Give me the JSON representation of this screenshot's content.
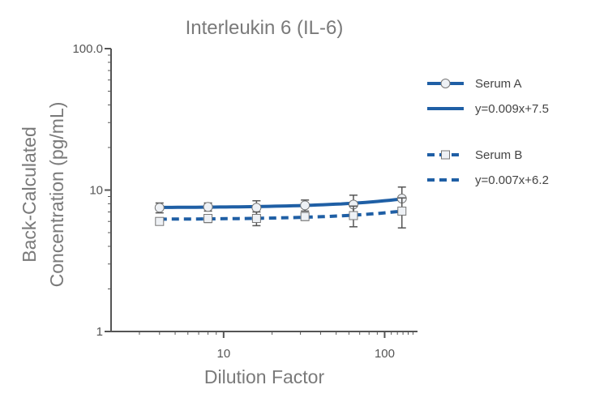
{
  "chart_data": {
    "type": "line",
    "title": "Interleukin 6 (IL-6)",
    "xlabel": "Dilution Factor",
    "ylabel_line1": "Back-Calculated",
    "ylabel_line2": "Concentration (pg/mL)",
    "x_scale": "log",
    "y_scale": "log",
    "xlim": [
      2,
      160
    ],
    "ylim": [
      1,
      100
    ],
    "x_ticks": [
      10,
      100
    ],
    "x_tick_labels": [
      "10",
      "100"
    ],
    "y_ticks": [
      1,
      10,
      100
    ],
    "y_tick_labels": [
      "1",
      "10",
      "100.0"
    ],
    "grid": false,
    "legend_position": "right",
    "series": [
      {
        "name": "Serum A",
        "marker": "circle",
        "color": "#1f5fa5",
        "x": [
          4,
          8,
          16,
          32,
          64,
          128
        ],
        "y": [
          7.5,
          7.6,
          7.5,
          7.8,
          7.9,
          8.7
        ],
        "err": [
          0.6,
          0.5,
          0.9,
          0.7,
          1.3,
          1.8
        ]
      },
      {
        "name": "Serum B",
        "marker": "square",
        "color": "#1f5fa5",
        "x": [
          4,
          8,
          16,
          32,
          64,
          128
        ],
        "y": [
          6.0,
          6.3,
          6.3,
          6.5,
          6.6,
          7.1
        ],
        "err": [
          0.3,
          0.4,
          0.7,
          0.4,
          1.1,
          1.7
        ]
      }
    ],
    "fits": [
      {
        "name": "y=0.009x+7.5",
        "slope": 0.009,
        "intercept": 7.5,
        "style": "solid",
        "x_range": [
          4,
          128
        ]
      },
      {
        "name": "y=0.007x+6.2",
        "slope": 0.007,
        "intercept": 6.2,
        "style": "dashed",
        "x_range": [
          4,
          128
        ]
      }
    ],
    "legend": [
      {
        "label": "Serum A",
        "kind": "series",
        "ref": 0
      },
      {
        "label": "y=0.009x+7.5",
        "kind": "fit",
        "ref": 0
      },
      {
        "label": "Serum B",
        "kind": "series",
        "ref": 1
      },
      {
        "label": "y=0.007x+6.2",
        "kind": "fit",
        "ref": 1
      }
    ]
  }
}
